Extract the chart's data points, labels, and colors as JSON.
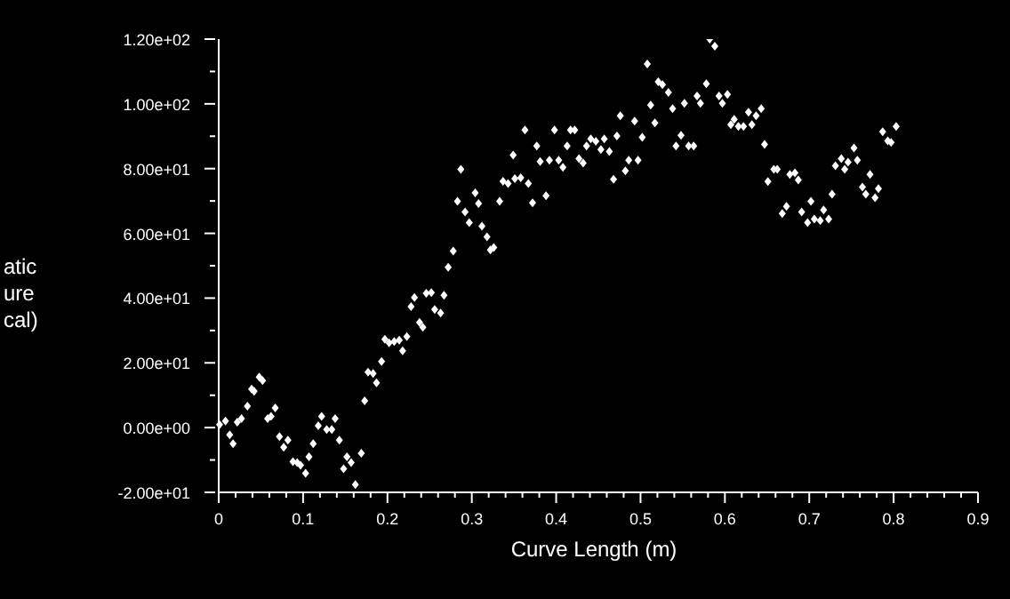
{
  "chart_data": {
    "type": "scatter",
    "xlabel": "Curve Length (m)",
    "ylabel": "atic\nure\ncal)",
    "marker": "diamond",
    "grid": false,
    "legend": false,
    "xlim": [
      0,
      0.9
    ],
    "ylim": [
      -20,
      120
    ],
    "xticks": [
      0,
      {
        "value": 0.02,
        "label": null
      },
      {
        "value": 0.04,
        "label": null
      },
      {
        "value": 0.06,
        "label": null
      },
      {
        "value": 0.08,
        "label": null
      },
      0.1,
      {
        "value": 0.12,
        "label": null
      },
      {
        "value": 0.14,
        "label": null
      },
      {
        "value": 0.16,
        "label": null
      },
      {
        "value": 0.18,
        "label": null
      },
      0.2,
      {
        "value": 0.22,
        "label": null
      },
      {
        "value": 0.24,
        "label": null
      },
      {
        "value": 0.26,
        "label": null
      },
      {
        "value": 0.28,
        "label": null
      },
      0.3,
      {
        "value": 0.32,
        "label": null
      },
      {
        "value": 0.34,
        "label": null
      },
      {
        "value": 0.36,
        "label": null
      },
      {
        "value": 0.38,
        "label": null
      },
      0.4,
      {
        "value": 0.42,
        "label": null
      },
      {
        "value": 0.44,
        "label": null
      },
      {
        "value": 0.46,
        "label": null
      },
      {
        "value": 0.48,
        "label": null
      },
      0.5,
      {
        "value": 0.52,
        "label": null
      },
      {
        "value": 0.54,
        "label": null
      },
      {
        "value": 0.56,
        "label": null
      },
      {
        "value": 0.58,
        "label": null
      },
      0.6,
      {
        "value": 0.62,
        "label": null
      },
      {
        "value": 0.64,
        "label": null
      },
      {
        "value": 0.66,
        "label": null
      },
      {
        "value": 0.68,
        "label": null
      },
      0.7,
      {
        "value": 0.72,
        "label": null
      },
      {
        "value": 0.74,
        "label": null
      },
      {
        "value": 0.76,
        "label": null
      },
      {
        "value": 0.78,
        "label": null
      },
      0.8,
      {
        "value": 0.82,
        "label": null
      },
      {
        "value": 0.84,
        "label": null
      },
      {
        "value": 0.86,
        "label": null
      },
      {
        "value": 0.88,
        "label": null
      },
      0.9
    ],
    "yticks": [
      {
        "value": -20,
        "label": "-2.00e+01"
      },
      {
        "value": -10,
        "label": null
      },
      {
        "value": 0,
        "label": "0.00e+00"
      },
      {
        "value": 10,
        "label": null
      },
      {
        "value": 20,
        "label": "2.00e+01"
      },
      {
        "value": 30,
        "label": null
      },
      {
        "value": 40,
        "label": "4.00e+01"
      },
      {
        "value": 50,
        "label": null
      },
      {
        "value": 60,
        "label": "6.00e+01"
      },
      {
        "value": 70,
        "label": null
      },
      {
        "value": 80,
        "label": "8.00e+01"
      },
      {
        "value": 90,
        "label": null
      },
      {
        "value": 100,
        "label": "1.00e+02"
      },
      {
        "value": 110,
        "label": null
      },
      {
        "value": 120,
        "label": "1.20e+02"
      }
    ],
    "series": [
      {
        "color": "#ffffff",
        "x": [
          0.001,
          0.008,
          0.013,
          0.017,
          0.022,
          0.027,
          0.034,
          0.039,
          0.042,
          0.048,
          0.052,
          0.058,
          0.062,
          0.067,
          0.072,
          0.077,
          0.082,
          0.088,
          0.093,
          0.097,
          0.103,
          0.107,
          0.112,
          0.118,
          0.122,
          0.128,
          0.134,
          0.138,
          0.143,
          0.148,
          0.152,
          0.157,
          0.162,
          0.169,
          0.173,
          0.177,
          0.183,
          0.187,
          0.193,
          0.197,
          0.202,
          0.208,
          0.214,
          0.218,
          0.223,
          0.228,
          0.232,
          0.238,
          0.242,
          0.246,
          0.252,
          0.256,
          0.263,
          0.267,
          0.272,
          0.278,
          0.283,
          0.287,
          0.292,
          0.297,
          0.304,
          0.308,
          0.312,
          0.318,
          0.322,
          0.326,
          0.333,
          0.337,
          0.343,
          0.349,
          0.351,
          0.358,
          0.363,
          0.367,
          0.372,
          0.377,
          0.381,
          0.388,
          0.392,
          0.398,
          0.403,
          0.408,
          0.413,
          0.417,
          0.422,
          0.427,
          0.432,
          0.436,
          0.441,
          0.447,
          0.453,
          0.457,
          0.463,
          0.468,
          0.472,
          0.476,
          0.482,
          0.486,
          0.493,
          0.497,
          0.502,
          0.508,
          0.512,
          0.517,
          0.521,
          0.526,
          0.533,
          0.538,
          0.542,
          0.548,
          0.552,
          0.557,
          0.563,
          0.567,
          0.571,
          0.578,
          0.582,
          0.588,
          0.593,
          0.597,
          0.603,
          0.607,
          0.611,
          0.616,
          0.622,
          0.628,
          0.632,
          0.637,
          0.643,
          0.647,
          0.651,
          0.658,
          0.662,
          0.668,
          0.673,
          0.677,
          0.683,
          0.687,
          0.691,
          0.698,
          0.702,
          0.706,
          0.713,
          0.717,
          0.723,
          0.727,
          0.731,
          0.738,
          0.742,
          0.746,
          0.753,
          0.757,
          0.763,
          0.767,
          0.772,
          0.778,
          0.782,
          0.787,
          0.793,
          0.797,
          0.803
        ],
        "values": [
          0.9,
          2.0,
          -2.2,
          -5.0,
          1.7,
          2.8,
          6.6,
          11.9,
          11.2,
          15.6,
          14.5,
          2.8,
          3.5,
          6.1,
          -2.8,
          -6.1,
          -3.9,
          -10.5,
          -10.8,
          -11.6,
          -14.1,
          -9.0,
          -5.0,
          0.6,
          3.5,
          -0.6,
          -0.6,
          2.8,
          -3.9,
          -12.7,
          -9.0,
          -10.8,
          -17.6,
          -7.9,
          8.3,
          17.1,
          16.7,
          13.8,
          20.4,
          27.3,
          26.2,
          26.6,
          27.0,
          23.7,
          28.1,
          37.4,
          40.2,
          32.5,
          31.0,
          41.5,
          41.7,
          36.5,
          35.4,
          40.9,
          49.5,
          54.5,
          69.9,
          79.8,
          66.6,
          63.3,
          72.5,
          69.2,
          62.2,
          58.9,
          54.9,
          55.6,
          69.9,
          76.1,
          75.4,
          84.2,
          76.9,
          77.2,
          91.9,
          75.4,
          69.4,
          87.0,
          82.2,
          71.6,
          82.6,
          91.9,
          82.6,
          80.4,
          87.0,
          91.9,
          91.9,
          83.1,
          81.7,
          87.0,
          89.2,
          88.4,
          85.9,
          89.2,
          85.3,
          76.7,
          90.1,
          96.3,
          79.3,
          82.6,
          94.7,
          82.6,
          89.7,
          112.3,
          99.6,
          94.1,
          106.8,
          105.9,
          103.5,
          98.5,
          87.0,
          90.3,
          100.2,
          87.0,
          87.0,
          102.4,
          100.2,
          106.2,
          120.0,
          117.8,
          102.4,
          100.2,
          102.9,
          93.6,
          95.2,
          93.0,
          93.0,
          97.4,
          93.6,
          96.3,
          98.5,
          87.5,
          76.0,
          79.8,
          79.8,
          66.1,
          68.3,
          78.2,
          78.7,
          76.5,
          66.6,
          63.3,
          69.9,
          64.4,
          63.9,
          67.2,
          64.4,
          72.1,
          80.9,
          83.1,
          79.8,
          82.0,
          86.4,
          82.6,
          74.3,
          72.1,
          78.2,
          71.0,
          73.8,
          91.4,
          88.6,
          88.1,
          93.0
        ]
      }
    ]
  }
}
